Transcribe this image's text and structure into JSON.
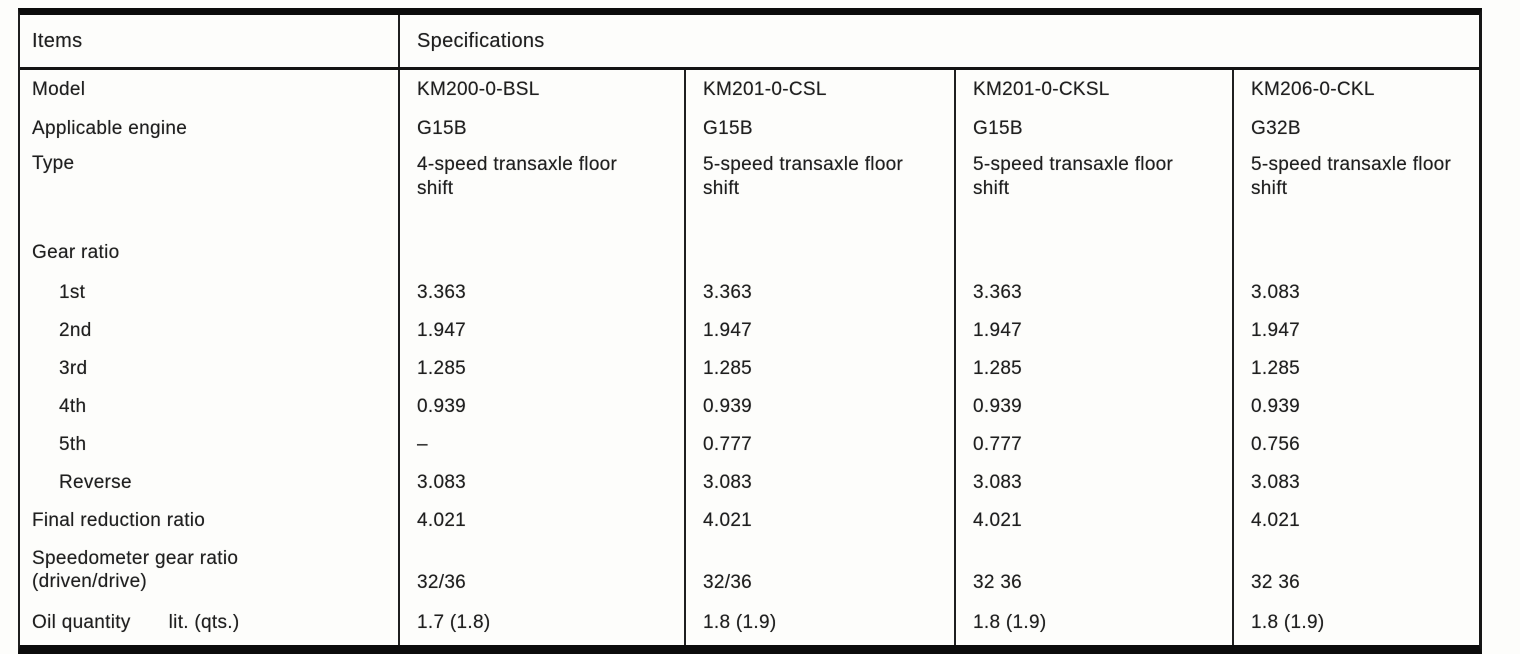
{
  "table": {
    "header": {
      "items_label": "Items",
      "specifications_label": "Specifications"
    },
    "rows": [
      {
        "label": "Model",
        "values": [
          "KM200-0-BSL",
          "KM201-0-CSL",
          "KM201-0-CKSL",
          "KM206-0-CKL"
        ]
      },
      {
        "label": "Applicable engine",
        "values": [
          "G15B",
          "G15B",
          "G15B",
          "G32B"
        ]
      },
      {
        "label": "Type",
        "values": [
          "4-speed transaxle floor shift",
          "5-speed transaxle floor shift",
          "5-speed transaxle floor shift",
          "5-speed transaxle floor shift"
        ]
      },
      {
        "label": "Gear ratio",
        "values": [
          "",
          "",
          "",
          ""
        ]
      },
      {
        "label": "1st",
        "values": [
          "3.363",
          "3.363",
          "3.363",
          "3.083"
        ]
      },
      {
        "label": "2nd",
        "values": [
          "1.947",
          "1.947",
          "1.947",
          "1.947"
        ]
      },
      {
        "label": "3rd",
        "values": [
          "1.285",
          "1.285",
          "1.285",
          "1.285"
        ]
      },
      {
        "label": "4th",
        "values": [
          "0.939",
          "0.939",
          "0.939",
          "0.939"
        ]
      },
      {
        "label": "5th",
        "values": [
          "–",
          "0.777",
          "0.777",
          "0.756"
        ]
      },
      {
        "label": "Reverse",
        "values": [
          "3.083",
          "3.083",
          "3.083",
          "3.083"
        ]
      },
      {
        "label": "Final reduction ratio",
        "values": [
          "4.021",
          "4.021",
          "4.021",
          "4.021"
        ]
      },
      {
        "label_line1": "Speedometer gear ratio",
        "label_line2": "(driven/drive)",
        "values": [
          "32/36",
          "32/36",
          "32 36",
          "32 36"
        ]
      },
      {
        "label": "Oil quantity",
        "unit": "lit. (qts.)",
        "values": [
          "1.7 (1.8)",
          "1.8 (1.9)",
          "1.8 (1.9)",
          "1.8 (1.9)"
        ]
      }
    ],
    "colors": {
      "ink": "#1f1f1f",
      "paper": "#fdfdfb"
    }
  }
}
